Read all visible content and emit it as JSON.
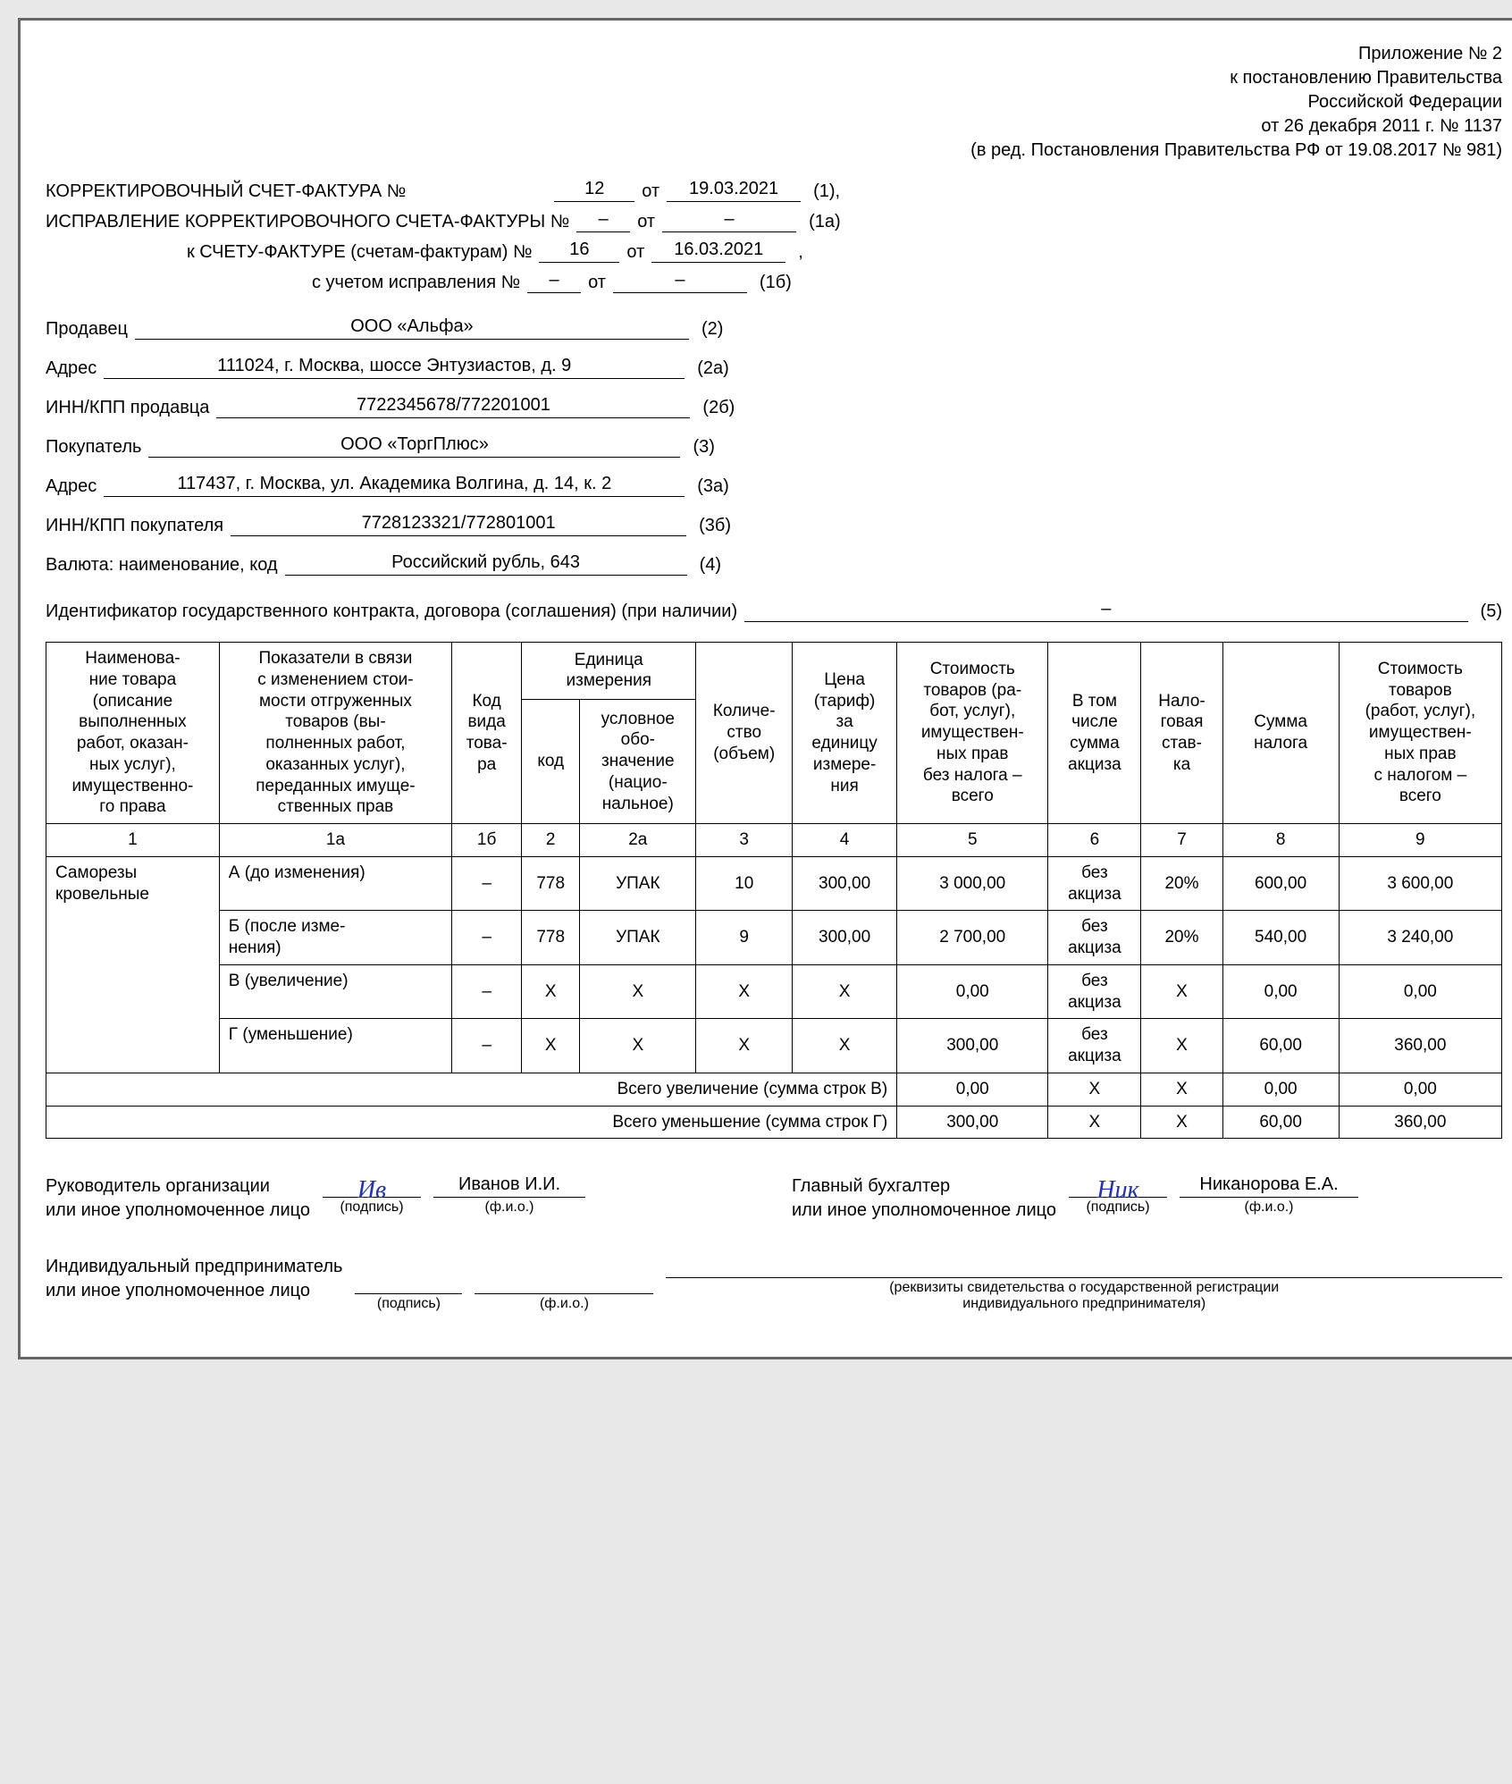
{
  "header": {
    "line1": "Приложение № 2",
    "line2": "к постановлению Правительства",
    "line3": "Российской Федерации",
    "line4": "от 26 декабря 2011 г. № 1137",
    "line5": "(в ред. Постановления Правительства РФ от 19.08.2017 № 981)"
  },
  "top": {
    "l1_label": "КОРРЕКТИРОВОЧНЫЙ СЧЕТ-ФАКТУРА №",
    "l1_num": "12",
    "l1_ot": "от",
    "l1_date": "19.03.2021",
    "l1_code": "(1),",
    "l2_label": "ИСПРАВЛЕНИЕ КОРРЕКТИРОВОЧНОГО СЧЕТА-ФАКТУРЫ №",
    "l2_num": "–",
    "l2_ot": "от",
    "l2_date": "–",
    "l2_code": "(1а)",
    "l3_label": "к СЧЕТУ-ФАКТУРЕ (счетам-фактурам) №",
    "l3_num": "16",
    "l3_ot": "от",
    "l3_date": "16.03.2021",
    "l3_code": ",",
    "l4_label": "с учетом исправления №",
    "l4_num": "–",
    "l4_ot": "от",
    "l4_date": "–",
    "l4_code": "(1б)"
  },
  "fields": {
    "seller_label": "Продавец",
    "seller_val": "ООО «Альфа»",
    "seller_code": "(2)",
    "seller_addr_label": "Адрес",
    "seller_addr_val": "111024, г. Москва, шоссе Энтузиастов, д. 9",
    "seller_addr_code": "(2а)",
    "seller_inn_label": "ИНН/КПП продавца",
    "seller_inn_val": "7722345678/772201001",
    "seller_inn_code": "(2б)",
    "buyer_label": "Покупатель",
    "buyer_val": "ООО «ТоргПлюс»",
    "buyer_code": "(3)",
    "buyer_addr_label": "Адрес",
    "buyer_addr_val": "117437, г. Москва, ул. Академика Волгина, д. 14, к. 2",
    "buyer_addr_code": "(3а)",
    "buyer_inn_label": "ИНН/КПП покупателя",
    "buyer_inn_val": "7728123321/772801001",
    "buyer_inn_code": "(3б)",
    "currency_label": "Валюта: наименование, код",
    "currency_val": "Российский рубль, 643",
    "currency_code": "(4)"
  },
  "contract": {
    "label": "Идентификатор государственного контракта, договора (соглашения) (при наличии)",
    "val": "–",
    "code": "(5)"
  },
  "table": {
    "headers": {
      "c1": "Наименова-\nние товара\n(описание\nвыполненных\nработ, оказан-\nных услуг),\nимущественно-\nго права",
      "c1a": "Показатели в связи\nс изменением стои-\nмости отгруженных\nтоваров (вы-\nполненных работ,\nоказанных услуг),\nпереданных имуще-\nственных прав",
      "c1b": "Код\nвида\nтова-\nра",
      "c2g": "Единица\nизмерения",
      "c2": "код",
      "c2a": "условное\nобо-\nзначение\n(нацио-\nнальное)",
      "c3": "Количе-\nство\n(объем)",
      "c4": "Цена\n(тариф)\nза\nединицу\nизмере-\nния",
      "c5": "Стоимость\nтоваров (ра-\nбот, услуг),\nимуществен-\nных прав\nбез налога –\nвсего",
      "c6": "В том\nчисле\nсумма\nакциза",
      "c7": "Нало-\nговая\nстав-\nка",
      "c8": "Сумма\nналога",
      "c9": "Стоимость\nтоваров\n(работ, услуг),\nимуществен-\nных прав\nс налогом –\nвсего"
    },
    "nums": {
      "c1": "1",
      "c1a": "1а",
      "c1b": "1б",
      "c2": "2",
      "c2a": "2а",
      "c3": "3",
      "c4": "4",
      "c5": "5",
      "c6": "6",
      "c7": "7",
      "c8": "8",
      "c9": "9"
    },
    "item_name": "Саморезы\nкровельные",
    "rows": [
      {
        "ind": "А (до изменения)",
        "c1b": "–",
        "c2": "778",
        "c2a": "УПАК",
        "c3": "10",
        "c4": "300,00",
        "c5": "3 000,00",
        "c6": "без\nакциза",
        "c7": "20%",
        "c8": "600,00",
        "c9": "3 600,00"
      },
      {
        "ind": "Б (после изме-\nнения)",
        "c1b": "–",
        "c2": "778",
        "c2a": "УПАК",
        "c3": "9",
        "c4": "300,00",
        "c5": "2 700,00",
        "c6": "без\nакциза",
        "c7": "20%",
        "c8": "540,00",
        "c9": "3 240,00"
      },
      {
        "ind": "В (увеличение)",
        "c1b": "–",
        "c2": "Х",
        "c2a": "Х",
        "c3": "Х",
        "c4": "Х",
        "c5": "0,00",
        "c6": "без\nакциза",
        "c7": "Х",
        "c8": "0,00",
        "c9": "0,00"
      },
      {
        "ind": "Г (уменьшение)",
        "c1b": "–",
        "c2": "Х",
        "c2a": "Х",
        "c3": "Х",
        "c4": "Х",
        "c5": "300,00",
        "c6": "без\nакциза",
        "c7": "Х",
        "c8": "60,00",
        "c9": "360,00"
      }
    ],
    "tot_inc": {
      "label": "Всего увеличение (сумма строк В)",
      "c5": "0,00",
      "c6": "Х",
      "c7": "Х",
      "c8": "0,00",
      "c9": "0,00"
    },
    "tot_dec": {
      "label": "Всего уменьшение (сумма строк Г)",
      "c5": "300,00",
      "c6": "Х",
      "c7": "Х",
      "c8": "60,00",
      "c9": "360,00"
    }
  },
  "sign": {
    "head_label": "Руководитель организации\nили иное уполномоченное лицо",
    "head_sig": "Ив",
    "head_name": "Иванов И.И.",
    "acc_label": "Главный бухгалтер\nили иное уполномоченное лицо",
    "acc_sig": "Ник",
    "acc_name": "Никанорова Е.А.",
    "ip_label": "Индивидуальный предприниматель\nили иное уполномоченное лицо",
    "hint_sig": "(подпись)",
    "hint_fio": "(ф.и.о.)",
    "hint_reg": "(реквизиты свидетельства о государственной регистрации\nиндивидуального предпринимателя)"
  }
}
